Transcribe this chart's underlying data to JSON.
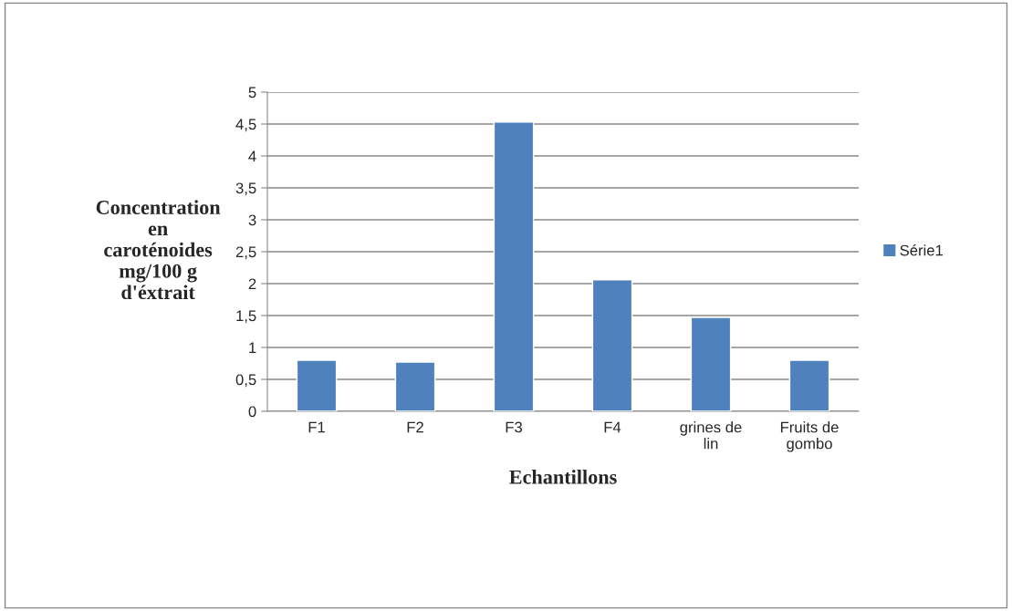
{
  "chart_data": {
    "type": "bar",
    "xlabel": "Echantillons",
    "ylabel": "Concentration\nen\ncaroténoides\nmg/100 g\nd'éxtrait",
    "categories": [
      "F1",
      "F2",
      "F3",
      "F4",
      "grines de\nlin",
      "Fruits de\ngombo"
    ],
    "series": [
      {
        "name": "Série1",
        "color": "#4f81bd",
        "values": [
          0.8,
          0.77,
          4.53,
          2.06,
          1.47,
          0.8
        ]
      }
    ],
    "ylim": [
      0,
      5
    ],
    "yticks": [
      0,
      {
        "value": 0.5,
        "label": "0,5"
      },
      1,
      {
        "value": 1.5,
        "label": "1,5"
      },
      2,
      {
        "value": 2.5,
        "label": "2,5"
      },
      3,
      {
        "value": 3.5,
        "label": "3,5"
      },
      4,
      {
        "value": 4.5,
        "label": "4,5"
      },
      5
    ],
    "grid": "y",
    "legend": "right"
  }
}
